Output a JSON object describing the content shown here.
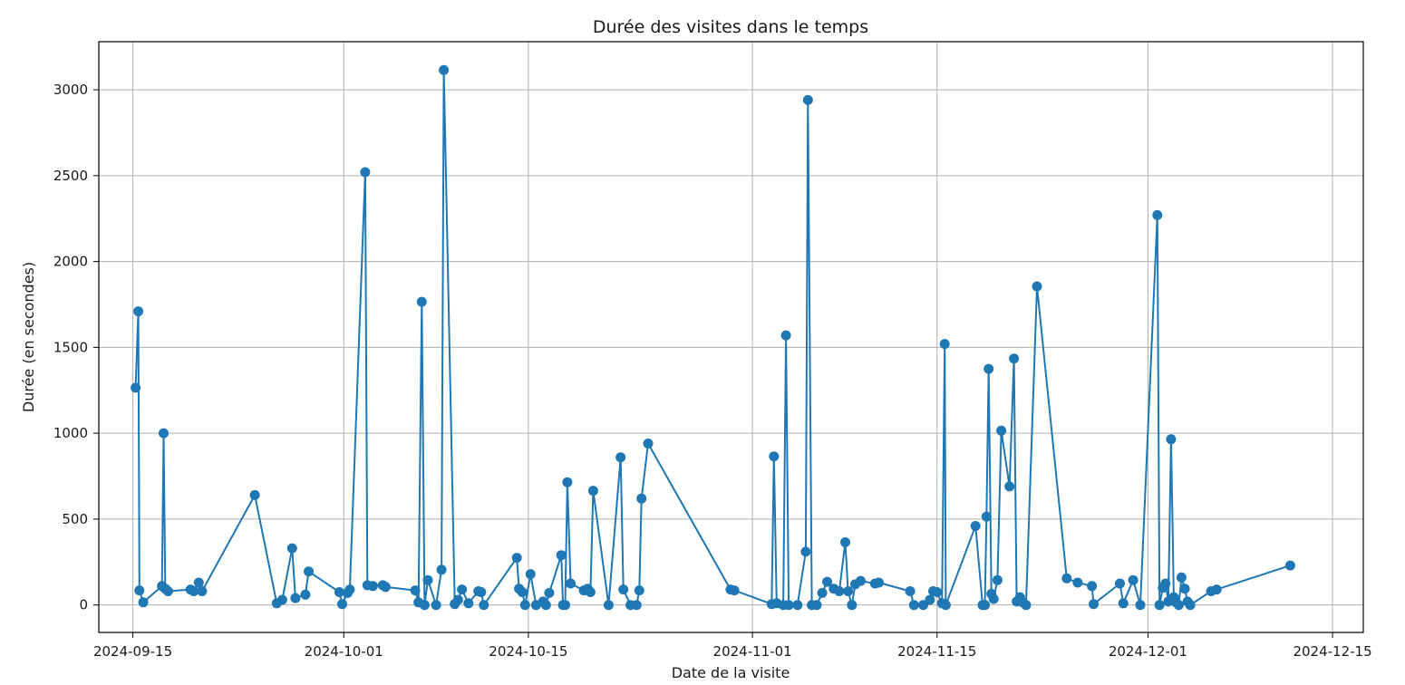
{
  "chart_data": {
    "type": "line",
    "title": "Durée des visites dans le temps",
    "xlabel": "Date de la visite",
    "ylabel": "Durée (en secondes)",
    "xlim": [
      "2024-09-12T10:00",
      "2024-12-17T08:00"
    ],
    "ylim": [
      -160,
      3280
    ],
    "x_ticks": [
      "2024-09-15",
      "2024-10-01",
      "2024-10-15",
      "2024-11-01",
      "2024-11-15",
      "2024-12-01",
      "2024-12-15"
    ],
    "y_ticks": [
      0,
      500,
      1000,
      1500,
      2000,
      2500,
      3000
    ],
    "grid": true,
    "color": "#1f77b4",
    "series": [
      {
        "x": [
          "2024-09-15T05:00",
          "2024-09-15T10:00",
          "2024-09-15T12:00",
          "2024-09-15T19:00",
          "2024-09-17T05:00",
          "2024-09-17T08:00",
          "2024-09-17T11:00",
          "2024-09-17T16:00",
          "2024-09-19T09:00",
          "2024-09-19T15:00",
          "2024-09-20T00:00",
          "2024-09-20T06:00",
          "2024-09-24T06:00",
          "2024-09-25T22:00",
          "2024-09-26T08:00",
          "2024-09-27T02:00",
          "2024-09-27T08:00",
          "2024-09-28T02:00",
          "2024-09-28T08:00",
          "2024-09-30T16:00",
          "2024-09-30T21:00",
          "2024-10-01T07:00",
          "2024-10-01T11:00",
          "2024-10-02T15:00",
          "2024-10-02T19:00",
          "2024-10-03T05:00",
          "2024-10-03T23:00",
          "2024-10-04T04:00",
          "2024-10-06T10:00",
          "2024-10-06T16:00",
          "2024-10-06T22:00",
          "2024-10-07T03:00",
          "2024-10-07T09:00",
          "2024-10-08T00:00",
          "2024-10-08T10:00",
          "2024-10-08T14:00",
          "2024-10-09T10:00",
          "2024-10-09T16:00",
          "2024-10-09T23:00",
          "2024-10-10T11:00",
          "2024-10-11T05:00",
          "2024-10-11T10:00",
          "2024-10-11T15:00",
          "2024-10-14T03:00",
          "2024-10-14T07:00",
          "2024-10-14T13:00",
          "2024-10-14T18:00",
          "2024-10-15T04:00",
          "2024-10-15T14:00",
          "2024-10-16T03:00",
          "2024-10-16T08:00",
          "2024-10-16T14:00",
          "2024-10-17T12:00",
          "2024-10-17T15:00",
          "2024-10-17T19:00",
          "2024-10-17T23:00",
          "2024-10-18T05:00",
          "2024-10-19T05:00",
          "2024-10-19T12:00",
          "2024-10-19T17:00",
          "2024-10-19T22:00",
          "2024-10-21T02:00",
          "2024-10-22T00:00",
          "2024-10-22T05:00",
          "2024-10-22T18:00",
          "2024-10-23T05:00",
          "2024-10-23T10:00",
          "2024-10-23T14:00",
          "2024-10-24T02:00",
          "2024-10-30T08:00",
          "2024-10-30T15:00",
          "2024-11-02T11:00",
          "2024-11-02T15:00",
          "2024-11-02T20:00",
          "2024-11-03T08:00",
          "2024-11-03T13:00",
          "2024-11-03T18:00",
          "2024-11-04T10:00",
          "2024-11-05T01:00",
          "2024-11-05T05:00",
          "2024-11-05T12:00",
          "2024-11-05T21:00",
          "2024-11-06T07:00",
          "2024-11-06T16:00",
          "2024-11-07T04:00",
          "2024-11-07T14:00",
          "2024-11-08T01:00",
          "2024-11-08T06:00",
          "2024-11-08T13:00",
          "2024-11-08T19:00",
          "2024-11-09T05:00",
          "2024-11-10T07:00",
          "2024-11-10T14:00",
          "2024-11-12T23:00",
          "2024-11-13T06:00",
          "2024-11-13T23:00",
          "2024-11-14T11:00",
          "2024-11-14T17:00",
          "2024-11-15T00:00",
          "2024-11-15T09:00",
          "2024-11-15T14:00",
          "2024-11-15T16:00",
          "2024-11-17T22:00",
          "2024-11-18T11:00",
          "2024-11-18T15:00",
          "2024-11-18T18:00",
          "2024-11-18T22:00",
          "2024-11-19T03:00",
          "2024-11-19T07:00",
          "2024-11-19T14:00",
          "2024-11-19T21:00",
          "2024-11-20T12:00",
          "2024-11-20T20:00",
          "2024-11-21T01:00",
          "2024-11-21T07:00",
          "2024-11-21T12:00",
          "2024-11-21T18:00",
          "2024-11-22T14:00",
          "2024-11-24T20:00",
          "2024-11-25T16:00",
          "2024-11-26T18:00",
          "2024-11-26T21:00",
          "2024-11-28T21:00",
          "2024-11-29T03:00",
          "2024-11-29T21:00",
          "2024-11-30T10:00",
          "2024-12-01T17:00",
          "2024-12-01T21:00",
          "2024-12-02T03:00",
          "2024-12-02T08:00",
          "2024-12-02T13:00",
          "2024-12-02T18:00",
          "2024-12-02T23:00",
          "2024-12-03T03:00",
          "2024-12-03T08:00",
          "2024-12-03T13:00",
          "2024-12-03T19:00",
          "2024-12-04T00:00",
          "2024-12-04T05:00",
          "2024-12-05T19:00",
          "2024-12-06T05:00",
          "2024-12-11T19:00"
        ],
        "y": [
          1265,
          1710,
          85,
          15,
          110,
          1000,
          95,
          80,
          90,
          80,
          130,
          80,
          640,
          10,
          30,
          330,
          40,
          60,
          195,
          75,
          5,
          70,
          90,
          2520,
          115,
          110,
          115,
          105,
          85,
          15,
          1765,
          0,
          145,
          0,
          205,
          3115,
          5,
          30,
          90,
          10,
          80,
          75,
          0,
          275,
          95,
          75,
          0,
          180,
          0,
          20,
          0,
          70,
          290,
          0,
          0,
          715,
          125,
          85,
          95,
          75,
          665,
          0,
          860,
          90,
          0,
          0,
          85,
          620,
          940,
          90,
          85,
          5,
          865,
          10,
          0,
          1570,
          0,
          0,
          310,
          2940,
          0,
          0,
          70,
          135,
          95,
          80,
          365,
          80,
          0,
          120,
          140,
          125,
          130,
          80,
          0,
          0,
          30,
          80,
          75,
          10,
          1520,
          0,
          460,
          0,
          0,
          515,
          1375,
          65,
          35,
          145,
          1015,
          690,
          1435,
          20,
          45,
          15,
          0,
          1855,
          155,
          130,
          110,
          5,
          125,
          10,
          145,
          0,
          2270,
          0,
          100,
          125,
          20,
          965,
          45,
          15,
          0,
          160,
          95,
          20,
          0,
          80,
          90,
          230
        ]
      }
    ]
  }
}
